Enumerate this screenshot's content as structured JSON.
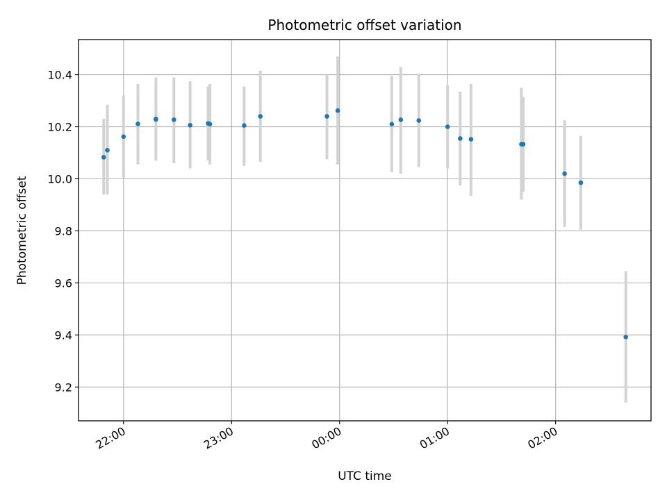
{
  "chart_data": {
    "type": "scatter",
    "title": "Photometric offset variation",
    "xlabel": "UTC time",
    "ylabel": "Photometric offset",
    "x_unit": "UTC time (HH:MM)",
    "xlim": [
      "21:35",
      "02:53"
    ],
    "ylim": [
      9.07,
      10.535
    ],
    "x_ticks": [
      "22:00",
      "23:00",
      "00:00",
      "01:00",
      "02:00"
    ],
    "y_ticks": [
      "9.2",
      "9.4",
      "9.6",
      "9.8",
      "10.0",
      "10.2",
      "10.4"
    ],
    "grid": true,
    "legend": "none",
    "colors": {
      "point": "#1f77b4",
      "errorbar": "#d3d3d3",
      "grid": "#b0b0b0"
    },
    "series": [
      {
        "points": [
          {
            "x": "21:49",
            "y": 10.083,
            "y_low": 9.94,
            "y_high": 10.23
          },
          {
            "x": "21:51",
            "y": 10.11,
            "y_low": 9.94,
            "y_high": 10.285
          },
          {
            "x": "22:00",
            "y": 10.162,
            "y_low": 10.005,
            "y_high": 10.32
          },
          {
            "x": "22:08",
            "y": 10.211,
            "y_low": 10.055,
            "y_high": 10.365
          },
          {
            "x": "22:18",
            "y": 10.23,
            "y_low": 10.07,
            "y_high": 10.39
          },
          {
            "x": "22:18",
            "y": 10.228,
            "y_low": 10.075,
            "y_high": 10.38
          },
          {
            "x": "22:28",
            "y": 10.227,
            "y_low": 10.06,
            "y_high": 10.39
          },
          {
            "x": "22:37",
            "y": 10.206,
            "y_low": 10.04,
            "y_high": 10.375
          },
          {
            "x": "22:47",
            "y": 10.213,
            "y_low": 10.07,
            "y_high": 10.355
          },
          {
            "x": "22:48",
            "y": 10.21,
            "y_low": 10.055,
            "y_high": 10.365
          },
          {
            "x": "23:07",
            "y": 10.205,
            "y_low": 10.05,
            "y_high": 10.355
          },
          {
            "x": "23:16",
            "y": 10.24,
            "y_low": 10.065,
            "y_high": 10.415
          },
          {
            "x": "23:53",
            "y": 10.24,
            "y_low": 10.075,
            "y_high": 10.4
          },
          {
            "x": "23:59",
            "y": 10.262,
            "y_low": 10.055,
            "y_high": 10.47
          },
          {
            "x": "00:29",
            "y": 10.21,
            "y_low": 10.025,
            "y_high": 10.395
          },
          {
            "x": "00:34",
            "y": 10.227,
            "y_low": 10.02,
            "y_high": 10.43
          },
          {
            "x": "00:44",
            "y": 10.224,
            "y_low": 10.045,
            "y_high": 10.405
          },
          {
            "x": "01:00",
            "y": 10.2,
            "y_low": 10.04,
            "y_high": 10.36
          },
          {
            "x": "01:07",
            "y": 10.155,
            "y_low": 9.975,
            "y_high": 10.335
          },
          {
            "x": "01:13",
            "y": 10.152,
            "y_low": 9.935,
            "y_high": 10.365
          },
          {
            "x": "01:41",
            "y": 10.133,
            "y_low": 9.92,
            "y_high": 10.35
          },
          {
            "x": "01:42",
            "y": 10.133,
            "y_low": 9.95,
            "y_high": 10.315
          },
          {
            "x": "02:05",
            "y": 10.02,
            "y_low": 9.815,
            "y_high": 10.225
          },
          {
            "x": "02:14",
            "y": 9.985,
            "y_low": 9.805,
            "y_high": 10.165
          },
          {
            "x": "02:39",
            "y": 9.392,
            "y_low": 9.14,
            "y_high": 9.645
          }
        ]
      }
    ]
  }
}
